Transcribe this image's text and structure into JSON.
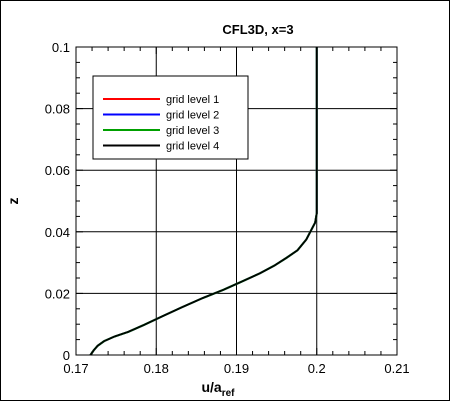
{
  "chart_data": {
    "type": "line",
    "title": "CFL3D, x=3",
    "xlabel": "u/a",
    "xlabel_sub": "ref",
    "ylabel": "z",
    "xlim": [
      0.17,
      0.21
    ],
    "ylim": [
      0,
      0.1
    ],
    "xticks": [
      "0.17",
      "0.18",
      "0.19",
      "0.2",
      "0.21"
    ],
    "yticks": [
      "0",
      "0.02",
      "0.04",
      "0.06",
      "0.08",
      "0.1"
    ],
    "grid": true,
    "legend_position": "top-left",
    "series": [
      {
        "name": "grid level 1",
        "color": "#ff0000",
        "x": [
          0.1718,
          0.1722,
          0.1727,
          0.1735,
          0.1748,
          0.1765,
          0.1785,
          0.1807,
          0.1832,
          0.1858,
          0.1884,
          0.1908,
          0.1929,
          0.1947,
          0.1962,
          0.1976,
          0.1987,
          0.1994,
          0.1998,
          0.2,
          0.2,
          0.2
        ],
        "y": [
          0,
          0.0015,
          0.003,
          0.0045,
          0.006,
          0.0075,
          0.0098,
          0.0125,
          0.0155,
          0.0185,
          0.0212,
          0.024,
          0.0265,
          0.029,
          0.0315,
          0.034,
          0.0375,
          0.041,
          0.043,
          0.046,
          0.05,
          0.1
        ]
      },
      {
        "name": "grid level 2",
        "color": "#0000ff",
        "x": [
          0.1718,
          0.1722,
          0.1727,
          0.1735,
          0.1748,
          0.1765,
          0.1785,
          0.1807,
          0.1832,
          0.1858,
          0.1884,
          0.1908,
          0.1929,
          0.1947,
          0.1962,
          0.1976,
          0.1987,
          0.1994,
          0.1998,
          0.2,
          0.2,
          0.2
        ],
        "y": [
          0,
          0.0015,
          0.003,
          0.0045,
          0.006,
          0.0075,
          0.0098,
          0.0125,
          0.0155,
          0.0185,
          0.0212,
          0.024,
          0.0265,
          0.029,
          0.0315,
          0.034,
          0.0375,
          0.041,
          0.043,
          0.046,
          0.05,
          0.1
        ]
      },
      {
        "name": "grid level 3",
        "color": "#00a000",
        "x": [
          0.1718,
          0.1722,
          0.1727,
          0.1735,
          0.1748,
          0.1765,
          0.1785,
          0.1807,
          0.1832,
          0.1858,
          0.1884,
          0.1908,
          0.1929,
          0.1947,
          0.1962,
          0.1976,
          0.1987,
          0.1994,
          0.1998,
          0.2,
          0.2,
          0.2
        ],
        "y": [
          0,
          0.0015,
          0.003,
          0.0045,
          0.006,
          0.0075,
          0.0098,
          0.0125,
          0.0155,
          0.0185,
          0.0212,
          0.024,
          0.0265,
          0.029,
          0.0315,
          0.034,
          0.0375,
          0.041,
          0.043,
          0.046,
          0.05,
          0.1
        ]
      },
      {
        "name": "grid level 4",
        "color": "#000000",
        "x": [
          0.1718,
          0.1722,
          0.1727,
          0.1735,
          0.1748,
          0.1765,
          0.1785,
          0.1807,
          0.1832,
          0.1858,
          0.1884,
          0.1908,
          0.1929,
          0.1947,
          0.1962,
          0.1976,
          0.1987,
          0.1994,
          0.1998,
          0.2,
          0.2,
          0.2
        ],
        "y": [
          0,
          0.0015,
          0.003,
          0.0045,
          0.006,
          0.0075,
          0.0098,
          0.0125,
          0.0155,
          0.0185,
          0.0212,
          0.024,
          0.0265,
          0.029,
          0.0315,
          0.034,
          0.0375,
          0.041,
          0.043,
          0.046,
          0.05,
          0.1
        ]
      }
    ]
  }
}
